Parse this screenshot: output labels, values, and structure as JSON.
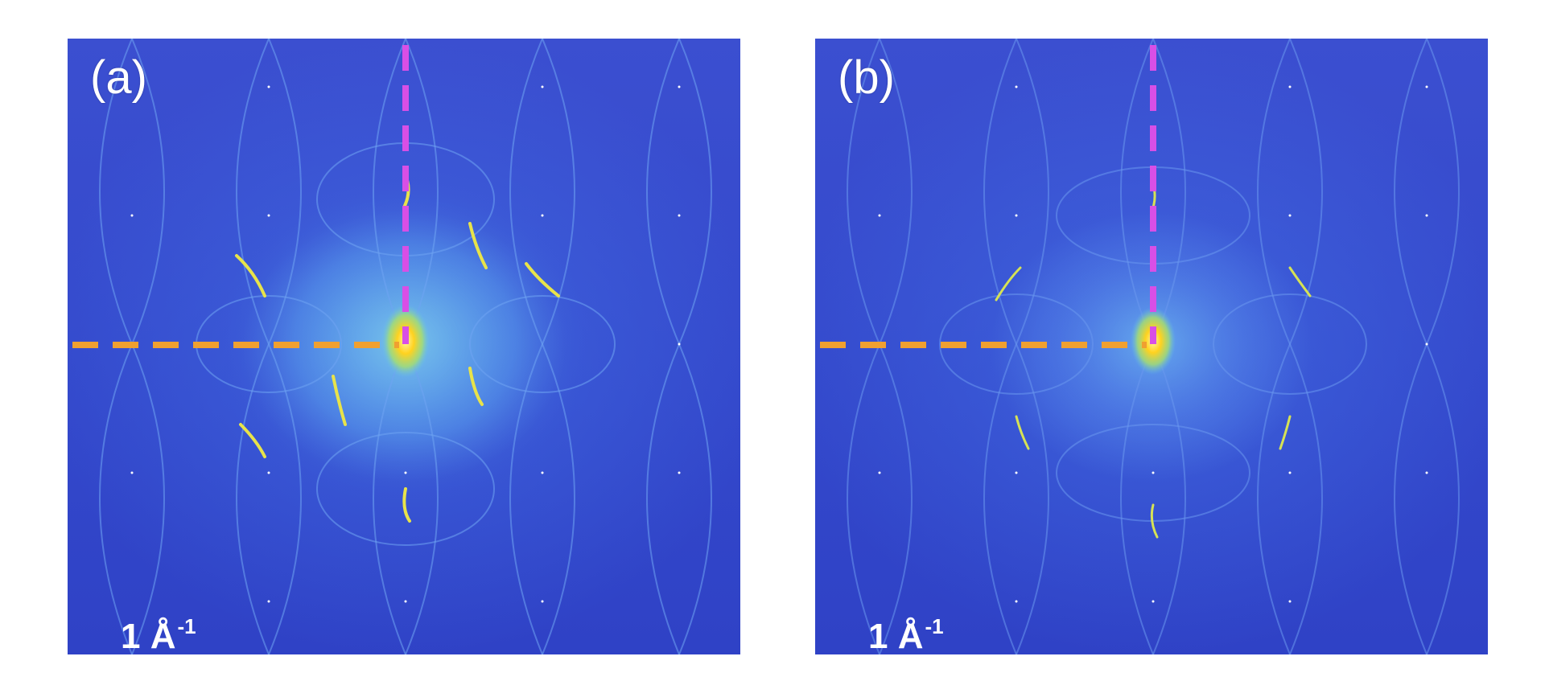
{
  "panels": [
    {
      "label": "(a)",
      "scale_bar": {
        "value": "1 Å",
        "exponent": "-1"
      }
    },
    {
      "label": "(b)",
      "scale_bar": {
        "value": "1 Å",
        "exponent": "-1"
      }
    }
  ],
  "colors": {
    "background": "#3449cc",
    "horizontal_dashed_line": "#f0a030",
    "vertical_dashed_line": "#d84fe6",
    "center_spot": "#ffe033",
    "scale_bar": "#ffffff"
  }
}
